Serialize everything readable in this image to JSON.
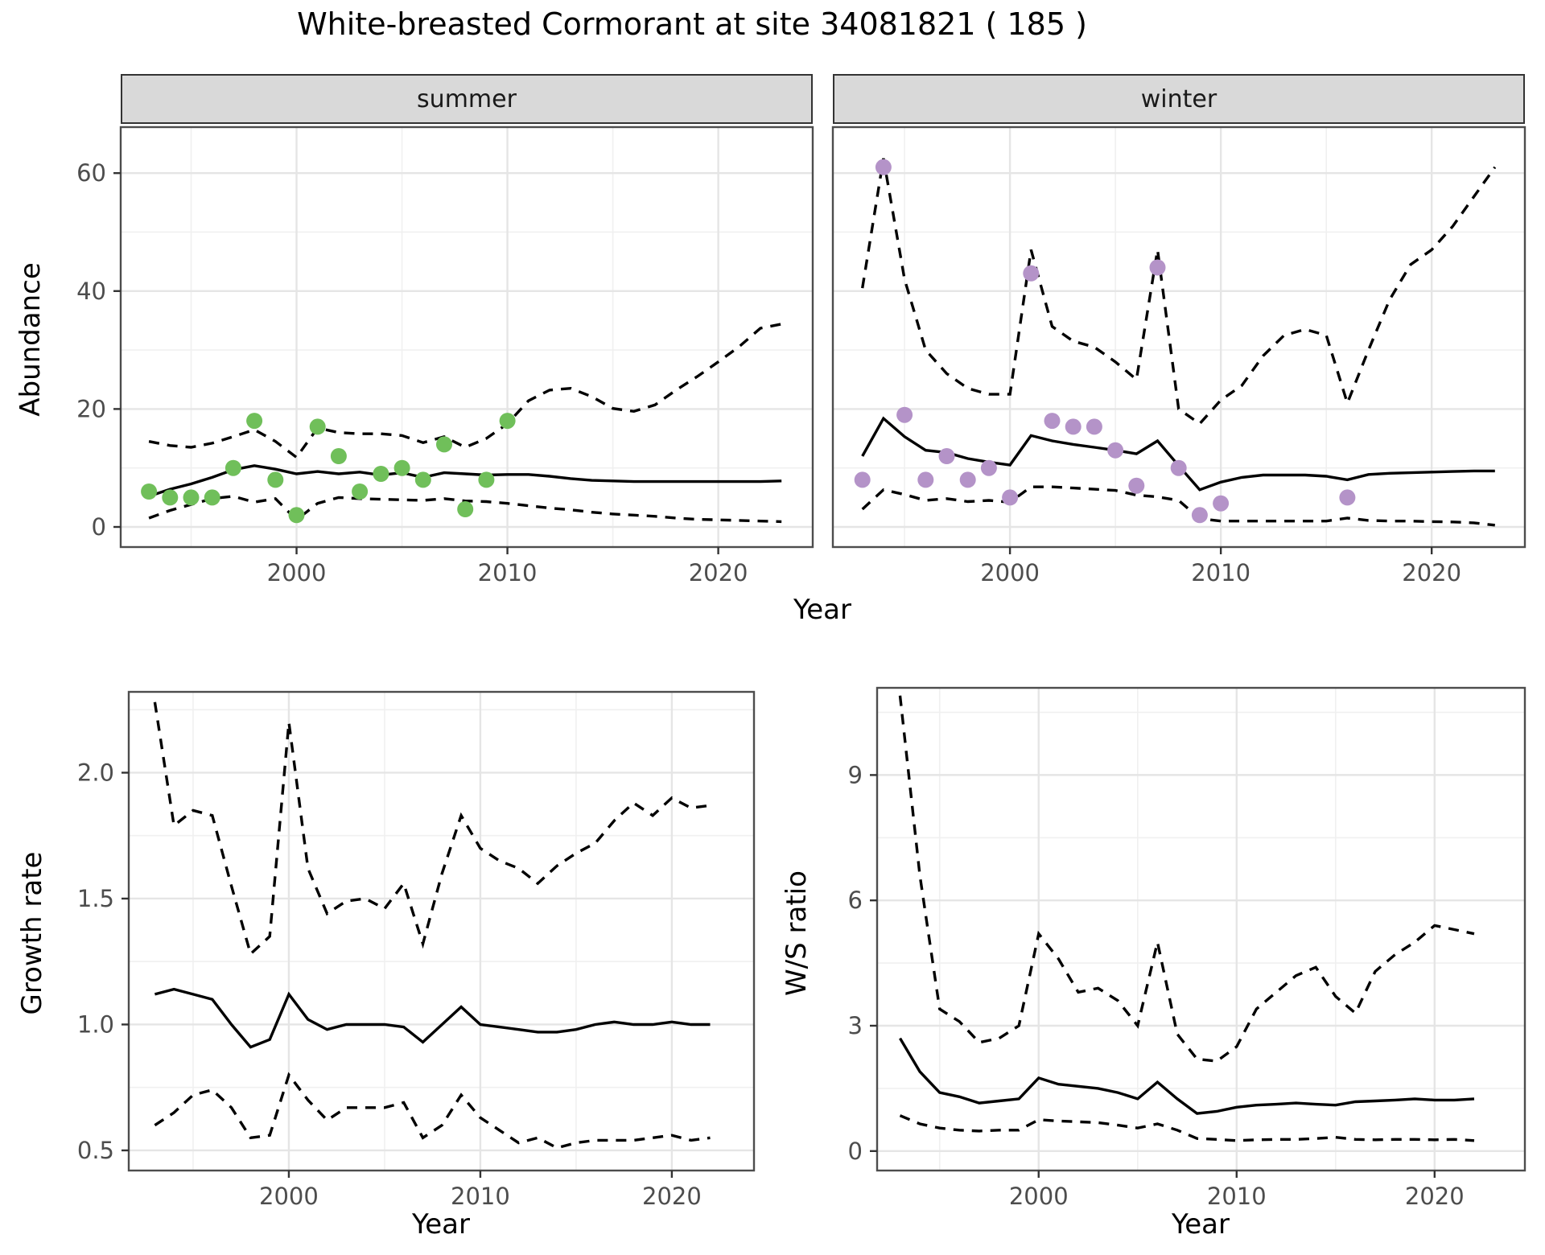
{
  "title": "White-breasted Cormorant at site 34081821 ( 185 )",
  "facets": {
    "summer": "summer",
    "winter": "winter"
  },
  "labels": {
    "abundance": "Abundance",
    "growth_rate": "Growth rate",
    "ws_ratio": "W/S ratio",
    "year": "Year"
  },
  "colors": {
    "summer_point": "#70bf5a",
    "winter_point": "#b493c8",
    "line": "#000000",
    "grid_major": "#e5e5e5",
    "grid_minor": "#f0f0f0",
    "panel_border": "#4d4d4d",
    "strip_fill": "#d9d9d9",
    "tick_text": "#4d4d4d"
  },
  "chart_data": [
    {
      "id": "abundance_summer",
      "type": "line",
      "facet": "summer",
      "ylabel": "Abundance",
      "xlabel": "Year",
      "x_ticks": [
        2000,
        2010,
        2020
      ],
      "x_minor": [
        1995,
        2005,
        2015
      ],
      "y_ticks": [
        0,
        20,
        40,
        60
      ],
      "y_minor": [
        10,
        30,
        50
      ],
      "xlim": [
        1991.66,
        2024.48
      ],
      "ylim": [
        -3.41,
        67.8
      ],
      "grid": true,
      "legend": "none",
      "years": [
        1993,
        1994,
        1995,
        1996,
        1997,
        1998,
        1999,
        2000,
        2001,
        2002,
        2003,
        2004,
        2005,
        2006,
        2007,
        2008,
        2009,
        2010,
        2011,
        2012,
        2013,
        2014,
        2015,
        2016,
        2017,
        2018,
        2019,
        2020,
        2021,
        2022,
        2023
      ],
      "series": [
        {
          "name": "ci_lower",
          "style": "dashed",
          "values": [
            1.5,
            2.8,
            3.8,
            4.8,
            5.2,
            4.2,
            4.8,
            1.2,
            4.0,
            5.0,
            4.8,
            4.7,
            4.6,
            4.5,
            4.8,
            4.4,
            4.3,
            4.0,
            3.6,
            3.2,
            2.9,
            2.5,
            2.2,
            2.0,
            1.8,
            1.5,
            1.3,
            1.2,
            1.1,
            1.0,
            0.9
          ]
        },
        {
          "name": "ci_upper",
          "style": "dashed",
          "values": [
            14.5,
            13.8,
            13.5,
            14.2,
            15.3,
            16.5,
            14.5,
            11.8,
            16.8,
            16.0,
            15.8,
            15.8,
            15.5,
            14.3,
            15.3,
            13.5,
            15.0,
            17.5,
            21.4,
            23.2,
            23.5,
            22.1,
            20.1,
            19.6,
            20.7,
            23.2,
            25.5,
            28.0,
            30.6,
            33.7,
            34.4
          ]
        },
        {
          "name": "median",
          "style": "solid",
          "values": [
            5.2,
            6.4,
            7.3,
            8.4,
            9.7,
            10.4,
            9.8,
            9.0,
            9.4,
            9.0,
            9.3,
            8.8,
            9.2,
            8.4,
            9.2,
            9.0,
            8.8,
            8.9,
            8.9,
            8.6,
            8.2,
            7.9,
            7.8,
            7.7,
            7.7,
            7.7,
            7.7,
            7.7,
            7.7,
            7.7,
            7.8
          ]
        }
      ],
      "points": {
        "color_key": "summer_point",
        "years": [
          1993,
          1994,
          1995,
          1996,
          1997,
          1998,
          1999,
          2000,
          2001,
          2002,
          2003,
          2004,
          2005,
          2006,
          2007,
          2008,
          2009,
          2010
        ],
        "values": [
          6,
          5,
          5,
          5,
          10,
          18,
          8,
          2,
          17,
          12,
          6,
          9,
          10,
          8,
          14,
          3,
          8,
          18
        ]
      }
    },
    {
      "id": "abundance_winter",
      "type": "line",
      "facet": "winter",
      "ylabel": "Abundance",
      "xlabel": "Year",
      "x_ticks": [
        2000,
        2010,
        2020
      ],
      "x_minor": [
        1995,
        2005,
        2015
      ],
      "y_ticks": [
        0,
        20,
        40,
        60
      ],
      "y_minor": [
        10,
        30,
        50
      ],
      "xlim": [
        1991.6,
        2024.42
      ],
      "ylim": [
        -3.41,
        67.8
      ],
      "grid": true,
      "legend": "none",
      "years": [
        1993,
        1994,
        1995,
        1996,
        1997,
        1998,
        1999,
        2000,
        2001,
        2002,
        2003,
        2004,
        2005,
        2006,
        2007,
        2008,
        2009,
        2010,
        2011,
        2012,
        2013,
        2014,
        2015,
        2016,
        2017,
        2018,
        2019,
        2020,
        2021,
        2022,
        2023
      ],
      "series": [
        {
          "name": "ci_lower",
          "style": "dashed",
          "values": [
            3.0,
            6.3,
            5.5,
            4.5,
            4.8,
            4.3,
            4.5,
            4.2,
            6.8,
            6.8,
            6.6,
            6.4,
            6.2,
            5.4,
            5.1,
            4.5,
            1.4,
            1.0,
            1.0,
            1.0,
            1.0,
            1.0,
            1.0,
            1.5,
            1.1,
            1.0,
            1.0,
            0.9,
            0.85,
            0.7,
            0.3
          ]
        },
        {
          "name": "ci_upper",
          "style": "dashed",
          "values": [
            40.5,
            62.5,
            42,
            30,
            26,
            23.5,
            22.5,
            22.5,
            47,
            34,
            31.5,
            30.5,
            28,
            25,
            47,
            20,
            17.5,
            21.5,
            24,
            29,
            32.5,
            33.5,
            32.5,
            21,
            30,
            38.5,
            44.5,
            47,
            51,
            56,
            61
          ]
        },
        {
          "name": "median",
          "style": "solid",
          "values": [
            12,
            18.4,
            15.3,
            13,
            12.6,
            11.6,
            11,
            10.5,
            15.5,
            14.6,
            14,
            13.5,
            13,
            12.4,
            14.6,
            10.4,
            6.3,
            7.6,
            8.4,
            8.8,
            8.8,
            8.8,
            8.6,
            8.0,
            8.9,
            9.1,
            9.2,
            9.3,
            9.4,
            9.5,
            9.5
          ]
        }
      ],
      "points": {
        "color_key": "winter_point",
        "years": [
          1993,
          1994,
          1995,
          1996,
          1997,
          1998,
          1999,
          2000,
          2001,
          2002,
          2003,
          2004,
          2005,
          2006,
          2007,
          2008,
          2009,
          2010,
          2016
        ],
        "values": [
          8,
          61,
          19,
          8,
          12,
          8,
          10,
          5,
          43,
          18,
          17,
          17,
          13,
          7,
          44,
          10,
          2,
          4,
          5
        ]
      }
    },
    {
      "id": "growth_rate",
      "type": "line",
      "facet": null,
      "ylabel": "Growth rate",
      "xlabel": "Year",
      "x_ticks": [
        2000,
        2010,
        2020
      ],
      "x_minor": [
        1995,
        2005,
        2015
      ],
      "y_ticks": [
        0.5,
        1.0,
        1.5,
        2.0
      ],
      "y_minor": [
        0.75,
        1.25,
        1.75,
        2.25
      ],
      "y_tick_labels": [
        "0.5",
        "1.0",
        "1.5",
        "2.0"
      ],
      "xlim": [
        1991.64,
        2024.29
      ],
      "ylim": [
        0.42,
        2.321
      ],
      "grid": true,
      "legend": "none",
      "years": [
        1993,
        1994,
        1995,
        1996,
        1997,
        1998,
        1999,
        2000,
        2001,
        2002,
        2003,
        2004,
        2005,
        2006,
        2007,
        2008,
        2009,
        2010,
        2011,
        2012,
        2013,
        2014,
        2015,
        2016,
        2017,
        2018,
        2019,
        2020,
        2021,
        2022
      ],
      "series": [
        {
          "name": "ci_lower",
          "style": "dashed",
          "values": [
            0.6,
            0.65,
            0.72,
            0.74,
            0.67,
            0.55,
            0.56,
            0.8,
            0.7,
            0.62,
            0.67,
            0.67,
            0.67,
            0.69,
            0.55,
            0.6,
            0.72,
            0.63,
            0.58,
            0.53,
            0.55,
            0.51,
            0.53,
            0.54,
            0.54,
            0.54,
            0.55,
            0.56,
            0.54,
            0.55
          ]
        },
        {
          "name": "ci_upper",
          "style": "dashed",
          "values": [
            2.28,
            1.79,
            1.85,
            1.83,
            1.55,
            1.28,
            1.35,
            2.2,
            1.62,
            1.44,
            1.49,
            1.5,
            1.46,
            1.56,
            1.32,
            1.6,
            1.83,
            1.7,
            1.65,
            1.62,
            1.56,
            1.63,
            1.68,
            1.72,
            1.81,
            1.88,
            1.83,
            1.9,
            1.86,
            1.87
          ]
        },
        {
          "name": "median",
          "style": "solid",
          "values": [
            1.12,
            1.14,
            1.12,
            1.1,
            1.0,
            0.91,
            0.94,
            1.12,
            1.02,
            0.98,
            1.0,
            1.0,
            1.0,
            0.99,
            0.93,
            1.0,
            1.07,
            1.0,
            0.99,
            0.98,
            0.97,
            0.97,
            0.98,
            1.0,
            1.01,
            1.0,
            1.0,
            1.01,
            1.0,
            1.0
          ]
        }
      ],
      "points": null
    },
    {
      "id": "ws_ratio",
      "type": "line",
      "facet": null,
      "ylabel": "W/S ratio",
      "xlabel": "Year",
      "x_ticks": [
        2000,
        2010,
        2020
      ],
      "x_minor": [
        1995,
        2005,
        2015
      ],
      "y_ticks": [
        0,
        3,
        6,
        9
      ],
      "y_minor": [
        1.5,
        4.5,
        7.5,
        10.5
      ],
      "xlim": [
        1991.84,
        2024.56
      ],
      "ylim": [
        -0.466,
        11.087
      ],
      "grid": true,
      "legend": "none",
      "years": [
        1993,
        1994,
        1995,
        1996,
        1997,
        1998,
        1999,
        2000,
        2001,
        2002,
        2003,
        2004,
        2005,
        2006,
        2007,
        2008,
        2009,
        2010,
        2011,
        2012,
        2013,
        2014,
        2015,
        2016,
        2017,
        2018,
        2019,
        2020,
        2021,
        2022
      ],
      "series": [
        {
          "name": "ci_lower",
          "style": "dashed",
          "values": [
            0.85,
            0.65,
            0.55,
            0.5,
            0.48,
            0.5,
            0.5,
            0.75,
            0.72,
            0.7,
            0.68,
            0.62,
            0.55,
            0.65,
            0.5,
            0.3,
            0.28,
            0.25,
            0.27,
            0.28,
            0.28,
            0.3,
            0.33,
            0.28,
            0.27,
            0.28,
            0.28,
            0.27,
            0.28,
            0.25
          ]
        },
        {
          "name": "ci_upper",
          "style": "dashed",
          "values": [
            10.9,
            6.6,
            3.4,
            3.1,
            2.6,
            2.7,
            3.0,
            5.2,
            4.6,
            3.8,
            3.9,
            3.6,
            3.0,
            5.0,
            2.8,
            2.2,
            2.15,
            2.5,
            3.4,
            3.8,
            4.2,
            4.4,
            3.7,
            3.3,
            4.3,
            4.7,
            5.0,
            5.4,
            5.3,
            5.2
          ]
        },
        {
          "name": "median",
          "style": "solid",
          "values": [
            2.7,
            1.9,
            1.4,
            1.3,
            1.15,
            1.2,
            1.25,
            1.75,
            1.6,
            1.55,
            1.5,
            1.4,
            1.25,
            1.65,
            1.25,
            0.9,
            0.95,
            1.05,
            1.1,
            1.12,
            1.15,
            1.12,
            1.1,
            1.18,
            1.2,
            1.22,
            1.25,
            1.22,
            1.22,
            1.25
          ]
        }
      ],
      "points": null
    }
  ]
}
